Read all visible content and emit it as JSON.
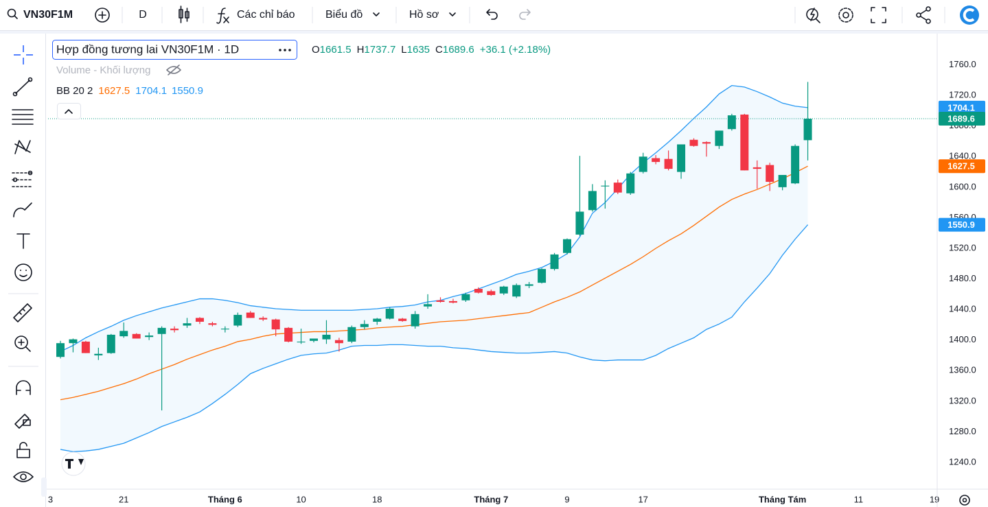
{
  "toolbar": {
    "symbol": "VN30F1M",
    "interval": "D",
    "indicators": "Các chỉ báo",
    "chart_menu": "Biểu đồ",
    "profile": "Hồ sơ"
  },
  "legend": {
    "title": "Hợp đồng tương lai VN30F1M · 1D",
    "ohlc_letters": [
      "O",
      "H",
      "L",
      "C"
    ],
    "change": "+36.1 (+2.18%)",
    "volume": "Volume - Khối lượng",
    "bb": "BB 20 2"
  },
  "chart_data": {
    "type": "candlestick",
    "categories": [
      "3",
      null,
      null,
      null,
      null,
      null,
      "21",
      null,
      null,
      null,
      null,
      null,
      null,
      null,
      "Tháng 6",
      null,
      null,
      null,
      null,
      null,
      "10",
      null,
      null,
      null,
      null,
      null,
      "18",
      null,
      null,
      null,
      null,
      null,
      null,
      null,
      null,
      "Tháng 7",
      null,
      null,
      null,
      null,
      null,
      "9",
      null,
      null,
      null,
      null,
      null,
      "17",
      null,
      null,
      null,
      null,
      null,
      null,
      null,
      null,
      null,
      null,
      "Tháng Tám",
      null,
      null,
      null,
      null,
      null,
      "11",
      null,
      null,
      null,
      null,
      null,
      "19"
    ],
    "open": [
      null,
      1378,
      1396,
      1398,
      1380,
      1383,
      1405,
      1408,
      1404,
      1408,
      1415,
      1419,
      1429,
      1422,
      1414,
      1419,
      1436,
      1429,
      1427,
      1416,
      1397,
      1399,
      1401,
      1400,
      1398,
      1417,
      1424,
      1428,
      1428,
      1418,
      1444,
      1452,
      1451,
      1452,
      1467,
      1464,
      1461,
      1457,
      1471,
      1475,
      1493,
      1514,
      1538,
      1570,
      1601,
      1606,
      1592,
      1620,
      1638,
      1637,
      1620,
      1662,
      1659,
      1654,
      1676,
      1695,
      1626,
      1629,
      1600,
      1605,
      1661.5,
      null,
      null,
      null,
      null,
      null,
      null,
      null,
      null,
      null,
      null
    ],
    "high": [
      null,
      1399,
      1402,
      1399,
      1390,
      1408,
      1423,
      1409,
      1410,
      1418,
      1418,
      1429,
      1430,
      1424,
      1418,
      1436,
      1438,
      1431,
      1428,
      1417,
      1415,
      1402,
      1426,
      1403,
      1419,
      1426,
      1429,
      1443,
      1429,
      1438,
      1460,
      1456,
      1454,
      1462,
      1469,
      1466,
      1471,
      1474,
      1476,
      1494,
      1514,
      1533,
      1641,
      1604,
      1609,
      1610,
      1620,
      1645,
      1642,
      1648,
      1656,
      1664,
      1660,
      1674,
      1696,
      1696,
      1635,
      1632,
      1616,
      1656,
      1737.7,
      null,
      null,
      null,
      null,
      null,
      null,
      null,
      null,
      null,
      null
    ],
    "low": [
      null,
      1376,
      1384,
      1383,
      1374,
      1382,
      1403,
      1402,
      1400,
      1308,
      1410,
      1416,
      1421,
      1418,
      1410,
      1417,
      1429,
      1425,
      1405,
      1397,
      1395,
      1397,
      1395,
      1385,
      1396,
      1414,
      1420,
      1427,
      1424,
      1415,
      1441,
      1449,
      1448,
      1450,
      1461,
      1458,
      1459,
      1455,
      1468,
      1474,
      1491,
      1512,
      1536,
      1568,
      1572,
      1591,
      1590,
      1618,
      1630,
      1622,
      1611,
      1653,
      1640,
      1650,
      1674,
      1622,
      1598,
      1595,
      1596,
      1604,
      1635,
      null,
      null,
      null,
      null,
      null,
      null,
      null,
      null,
      null,
      null
    ],
    "close": [
      null,
      1396,
      1401,
      1383,
      1382,
      1407,
      1412,
      1402,
      1406,
      1416,
      1413,
      1422,
      1424,
      1420,
      1415,
      1433,
      1429,
      1427,
      1414,
      1398,
      1398,
      1402,
      1407,
      1396,
      1417,
      1421,
      1428,
      1441,
      1425,
      1434,
      1447,
      1450,
      1449,
      1460,
      1462,
      1459,
      1470,
      1472,
      1473,
      1493,
      1512,
      1532,
      1568,
      1595,
      1602,
      1593,
      1618,
      1640,
      1633,
      1624,
      1656,
      1654,
      1657,
      1674,
      1694,
      1622,
      1624,
      1607,
      1616,
      1654,
      1689.6,
      null,
      null,
      null,
      null,
      null,
      null,
      null,
      null,
      null,
      null
    ],
    "up_color": "#089981",
    "down_color": "#f23645",
    "overlays": [
      {
        "color": "#ff6d00",
        "values": [
          null,
          1322,
          1325,
          1329,
          1333,
          1338,
          1343,
          1349,
          1356,
          1362,
          1368,
          1375,
          1381,
          1387,
          1392,
          1398,
          1401,
          1405,
          1408,
          1409,
          1410,
          1411,
          1411,
          1412,
          1413,
          1414,
          1416,
          1417,
          1418,
          1420,
          1422,
          1424,
          1425,
          1426,
          1428,
          1430,
          1432,
          1434,
          1436,
          1443,
          1450,
          1456,
          1463,
          1472,
          1481,
          1490,
          1499,
          1509,
          1520,
          1530,
          1539,
          1550,
          1562,
          1574,
          1584,
          1591,
          1597,
          1604,
          1611,
          1619,
          1627.5,
          null,
          null,
          null,
          null,
          null,
          null,
          null,
          null,
          null,
          null
        ]
      },
      {
        "color": "#2196f3",
        "values": [
          null,
          1385,
          1393,
          1403,
          1411,
          1418,
          1426,
          1432,
          1437,
          1442,
          1446,
          1450,
          1454,
          1454,
          1452,
          1449,
          1445,
          1443,
          1441,
          1440,
          1439,
          1439,
          1439,
          1439,
          1439,
          1440,
          1441,
          1443,
          1444,
          1446,
          1450,
          1452,
          1457,
          1461,
          1467,
          1473,
          1479,
          1486,
          1490,
          1495,
          1503,
          1513,
          1535,
          1566,
          1580,
          1598,
          1617,
          1632,
          1645,
          1659,
          1674,
          1690,
          1705,
          1722,
          1733,
          1731,
          1725,
          1718,
          1710,
          1706,
          1704.1,
          null,
          null,
          null,
          null,
          null,
          null,
          null,
          null,
          null,
          null
        ]
      },
      {
        "color": "#2196f3",
        "values": [
          null,
          1257,
          1254,
          1255,
          1257,
          1261,
          1265,
          1272,
          1279,
          1287,
          1293,
          1299,
          1306,
          1317,
          1329,
          1342,
          1356,
          1363,
          1369,
          1375,
          1380,
          1382,
          1383,
          1387,
          1392,
          1393,
          1393,
          1394,
          1394,
          1393,
          1392,
          1392,
          1390,
          1389,
          1387,
          1385,
          1384,
          1383,
          1383,
          1384,
          1385,
          1383,
          1378,
          1374,
          1373,
          1374,
          1374,
          1374,
          1380,
          1389,
          1396,
          1403,
          1414,
          1421,
          1430,
          1450,
          1468,
          1487,
          1511,
          1532,
          1550.9,
          null,
          null,
          null,
          null,
          null,
          null,
          null,
          null,
          null,
          null
        ]
      }
    ],
    "ylim": [
      1205,
      1800
    ],
    "yticks": [
      {
        "value": 1240,
        "label": "1240.0"
      },
      {
        "value": 1280,
        "label": "1280.0"
      },
      {
        "value": 1320,
        "label": "1320.0"
      },
      {
        "value": 1360,
        "label": "1360.0"
      },
      {
        "value": 1400,
        "label": "1400.0"
      },
      {
        "value": 1440,
        "label": "1440.0"
      },
      {
        "value": 1480,
        "label": "1480.0"
      },
      {
        "value": 1520,
        "label": "1520.0"
      },
      {
        "value": 1560,
        "label": "1560.0"
      },
      {
        "value": 1600,
        "label": "1600.0"
      },
      {
        "value": 1640,
        "label": "1640.0"
      },
      {
        "value": 1680,
        "label": "1680.0"
      },
      {
        "value": 1720,
        "label": "1720.0"
      },
      {
        "value": 1760,
        "label": "1760.0"
      }
    ],
    "grid": false
  }
}
